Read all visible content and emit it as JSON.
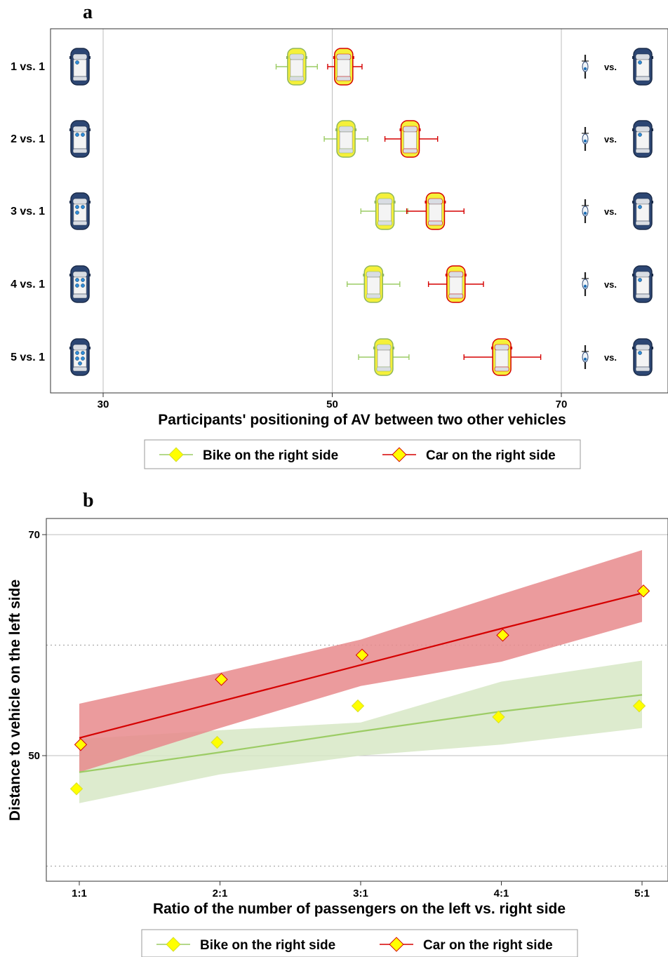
{
  "chart_data": [
    {
      "panel": "a",
      "type": "scatter",
      "title": "",
      "xlabel": "Participants' positioning of AV between two other vehicles",
      "ylabel": "",
      "xlim": [
        25.5,
        75
      ],
      "xticks": [
        "30",
        "50",
        "70"
      ],
      "xtick_values": [
        30,
        50,
        70
      ],
      "categories": [
        "1 vs. 1",
        "2 vs. 1",
        "3 vs. 1",
        "4 vs. 1",
        "5 vs. 1"
      ],
      "left_vehicle_passengers": [
        1,
        2,
        3,
        4,
        5
      ],
      "right_label": "vs.",
      "series": [
        {
          "name": "Bike on the right side",
          "color": "#9ccc65",
          "values": [
            46.9,
            51.2,
            54.6,
            53.6,
            54.5
          ],
          "ci_low": [
            45.1,
            49.3,
            52.5,
            51.3,
            52.3
          ],
          "ci_high": [
            48.7,
            53.1,
            56.6,
            55.9,
            56.7
          ]
        },
        {
          "name": "Car on the right side",
          "color": "#d50000",
          "values": [
            51.0,
            56.8,
            59.0,
            60.8,
            64.8
          ],
          "ci_low": [
            49.6,
            54.6,
            56.5,
            58.4,
            61.5
          ],
          "ci_high": [
            52.6,
            59.2,
            61.5,
            63.2,
            68.2
          ]
        }
      ],
      "grid": true,
      "legend": "bottom"
    },
    {
      "panel": "b",
      "type": "line",
      "title": "",
      "xlabel": "Ratio of the number of passengers on the left vs. right side",
      "ylabel": "Distance to vehicle on the left side",
      "categories": [
        "1:1",
        "2:1",
        "3:1",
        "4:1",
        "5:1"
      ],
      "ylim": [
        39.9,
        71.3
      ],
      "yticks": [
        "50",
        "70"
      ],
      "ytick_values": [
        50,
        70
      ],
      "dotted_reference_lines": [
        40,
        60
      ],
      "series": [
        {
          "name": "Bike on the right side",
          "color": "#9ccc65",
          "points": [
            47.0,
            51.2,
            54.5,
            53.5,
            54.5
          ],
          "fit": [
            48.5,
            50.3,
            52.2,
            54.0,
            55.5
          ],
          "ci_low": [
            45.7,
            48.3,
            50.0,
            51.0,
            52.5
          ],
          "ci_high": [
            51.5,
            52.3,
            53.0,
            56.7,
            58.6
          ]
        },
        {
          "name": "Car on the right side",
          "color": "#d50000",
          "points": [
            51.0,
            56.9,
            59.1,
            60.9,
            64.9
          ],
          "fit": [
            51.6,
            54.9,
            58.2,
            61.5,
            64.7
          ],
          "ci_low": [
            48.5,
            52.5,
            56.3,
            58.5,
            62.1
          ],
          "ci_high": [
            54.7,
            57.5,
            60.5,
            64.6,
            68.6
          ]
        }
      ],
      "grid": true,
      "legend": "bottom"
    }
  ],
  "colors": {
    "bike": "#9ccc65",
    "car": "#d50000",
    "marker_fill": "#ffff00",
    "bike_band": "#d7e8c6",
    "car_band": "#e88a8c",
    "vehicle_blue": "#2c4673",
    "av_yellow": "#f5f03a"
  }
}
